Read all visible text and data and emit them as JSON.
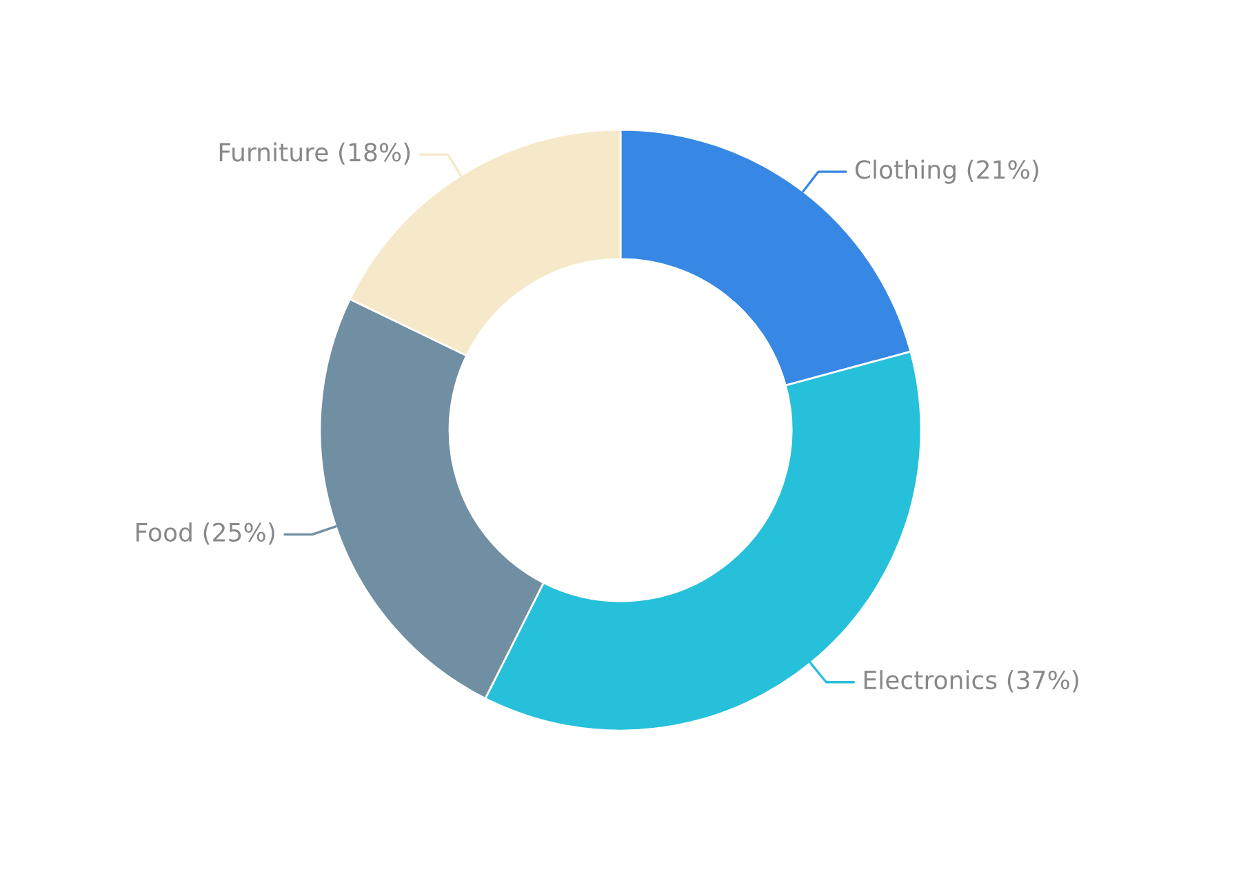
{
  "chart_data": {
    "type": "donut",
    "categories": [
      "Clothing",
      "Electronics",
      "Food",
      "Furniture"
    ],
    "values": [
      21,
      37,
      25,
      18
    ],
    "value_labels": [
      "(21%)",
      "(37%)",
      "(25%)",
      "(18%)"
    ],
    "colors": [
      "#3787e5",
      "#26c0db",
      "#718fa2",
      "#f5e9c9"
    ],
    "legend": false
  }
}
